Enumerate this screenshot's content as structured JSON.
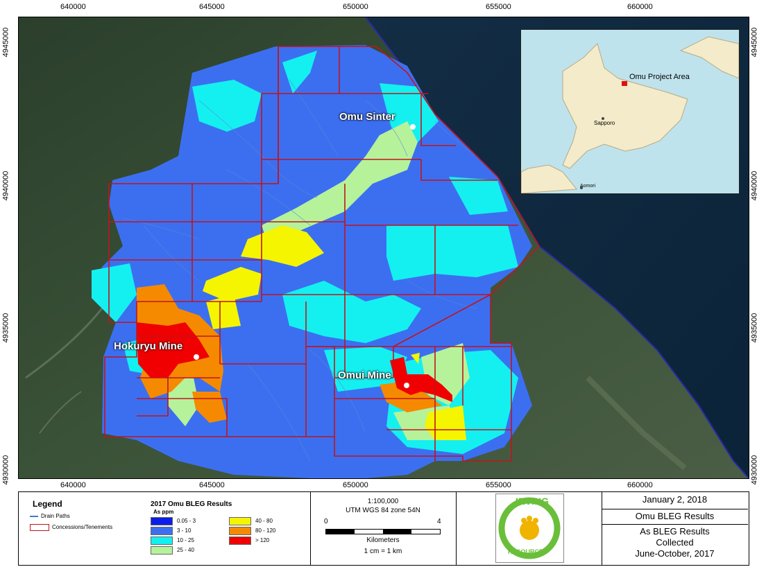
{
  "axis": {
    "top_ticks": [
      "640000",
      "645000",
      "650000",
      "655000",
      "660000"
    ],
    "bottom_ticks": [
      "640000",
      "645000",
      "650000",
      "655000",
      "660000"
    ],
    "left_ticks": [
      "4945000",
      "4940000",
      "4935000",
      "4930000"
    ],
    "right_ticks": [
      "4945000",
      "4940000",
      "4935000",
      "4930000"
    ]
  },
  "map": {
    "sites": {
      "omu_sinter": "Omu Sinter",
      "hokuryu_mine": "Hokuryu Mine",
      "omui_mine": "Omui Mine"
    },
    "colors": {
      "blue_3_10": "#3c6ff0",
      "cyan_10_25": "#14f0f0",
      "green_25_40": "#b6f29a",
      "yellow_40_80": "#f5f500",
      "orange_80_120": "#f58a00",
      "red_gt120": "#f00000",
      "tenement": "#c0141e",
      "satellite": "#2f4a34",
      "sea": "#0e2c45"
    }
  },
  "inset": {
    "project_label": "Omu Project Area",
    "city1": "Sapporo",
    "city2": "Aomori"
  },
  "legend": {
    "title": "Legend",
    "drain_paths": "Drain Paths",
    "concessions": "Concessions/Tenements",
    "results_title": "2017 Omu BLEG Results",
    "units": "As ppm",
    "classes": [
      {
        "label": "0.05 - 3",
        "color": "#0a1ee8"
      },
      {
        "label": "3 - 10",
        "color": "#3c6ff0"
      },
      {
        "label": "10 - 25",
        "color": "#14f0f0"
      },
      {
        "label": "25 - 40",
        "color": "#b6f29a"
      },
      {
        "label": "40 - 80",
        "color": "#f5f500"
      },
      {
        "label": "80 - 120",
        "color": "#f58a00"
      },
      {
        "label": "> 120",
        "color": "#f00000"
      }
    ]
  },
  "scale": {
    "ratio": "1:100,000",
    "projection": "UTM WGS 84 zone 54N",
    "zero": "0",
    "max": "4",
    "unit": "Kilometers",
    "equivalence": "1 cm = 1 km"
  },
  "logo": {
    "top": "IRVING",
    "bottom": "RESOURCES"
  },
  "info": {
    "date": "January 2, 2018",
    "title": "Omu BLEG Results",
    "line1": "As BLEG Results",
    "line2": "Collected",
    "line3": "June-October, 2017"
  }
}
